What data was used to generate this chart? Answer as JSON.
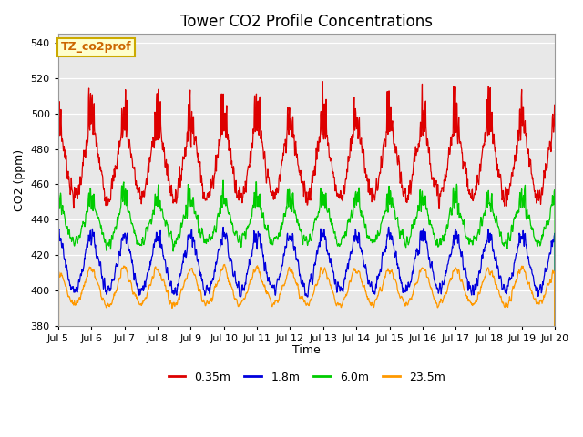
{
  "title": "Tower CO2 Profile Concentrations",
  "xlabel": "Time",
  "ylabel": "CO2 (ppm)",
  "ylim": [
    380,
    545
  ],
  "yticks": [
    380,
    400,
    420,
    440,
    460,
    480,
    500,
    520,
    540
  ],
  "bg_color": "#e8e8e8",
  "fig_color": "#ffffff",
  "annotation_text": "TZ_co2prof",
  "annotation_bg": "#ffffcc",
  "annotation_border": "#ccaa00",
  "annotation_text_color": "#cc6600",
  "series_colors": [
    "#dd0000",
    "#0000dd",
    "#00cc00",
    "#ff9900"
  ],
  "series_labels": [
    "0.35m",
    "1.8m",
    "6.0m",
    "23.5m"
  ],
  "x_tick_labels": [
    "Jul 5",
    "Jul 6",
    "Jul 7",
    "Jul 8",
    "Jul 9",
    "Jul 10",
    "Jul 11",
    "Jul 12",
    "Jul 13",
    "Jul 14",
    "Jul 15",
    "Jul 16",
    "Jul 17",
    "Jul 18",
    "Jul 19",
    "Jul 20"
  ],
  "n_days": 15,
  "pts_per_day": 96,
  "seed": 7
}
